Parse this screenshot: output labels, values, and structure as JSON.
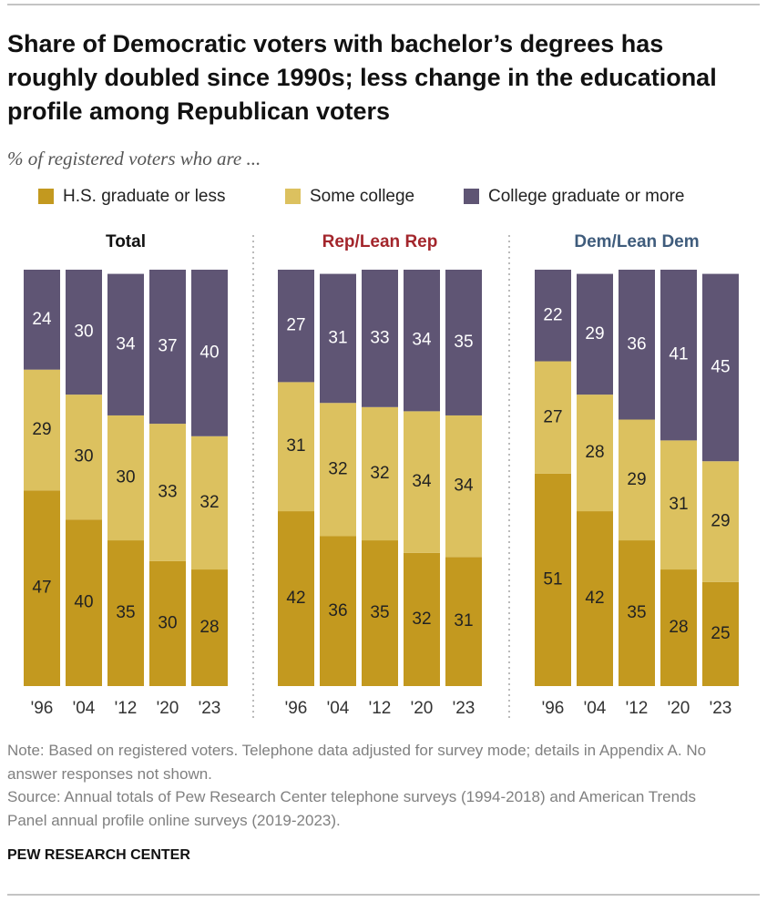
{
  "title": "Share of Democratic voters with bachelor’s degrees has roughly doubled since 1990s; less change in the educational profile among Republican voters",
  "subtitle": "% of registered voters who are ...",
  "legend": {
    "items": [
      {
        "name": "H.S. graduate or less",
        "color": "#c3991f"
      },
      {
        "name": "Some college",
        "color": "#dcc15f"
      },
      {
        "name": "College graduate or more",
        "color": "#5f5574"
      }
    ]
  },
  "note": "Note: Based on registered voters. Telephone data adjusted for survey mode; details in Appendix A. No answer responses not shown.",
  "source": "Source: Annual totals of Pew Research Center telephone surveys (1994-2018) and American Trends Panel annual profile online surveys (2019-2023).",
  "footer": "PEW RESEARCH CENTER",
  "chart_data": [
    {
      "type": "stacked_bar",
      "title": "Total",
      "title_color": "#111111",
      "categories": [
        "'96",
        "'04",
        "'12",
        "'20",
        "'23"
      ],
      "ylim": [
        0,
        100
      ],
      "series": [
        {
          "values": [
            47,
            40,
            35,
            30,
            28
          ]
        },
        {
          "values": [
            29,
            30,
            30,
            33,
            32
          ]
        },
        {
          "values": [
            24,
            30,
            34,
            37,
            40
          ]
        }
      ]
    },
    {
      "type": "stacked_bar",
      "title": "Rep/Lean Rep",
      "title_color": "#a3262c",
      "categories": [
        "'96",
        "'04",
        "'12",
        "'20",
        "'23"
      ],
      "ylim": [
        0,
        100
      ],
      "series": [
        {
          "values": [
            42,
            36,
            35,
            32,
            31
          ]
        },
        {
          "values": [
            31,
            32,
            32,
            34,
            34
          ]
        },
        {
          "values": [
            27,
            31,
            33,
            34,
            35
          ]
        }
      ]
    },
    {
      "type": "stacked_bar",
      "title": "Dem/Lean Dem",
      "title_color": "#3f5c7c",
      "categories": [
        "'96",
        "'04",
        "'12",
        "'20",
        "'23"
      ],
      "ylim": [
        0,
        100
      ],
      "series": [
        {
          "values": [
            51,
            42,
            35,
            28,
            25
          ]
        },
        {
          "values": [
            27,
            28,
            29,
            31,
            29
          ]
        },
        {
          "values": [
            22,
            29,
            36,
            41,
            45
          ]
        }
      ]
    }
  ]
}
